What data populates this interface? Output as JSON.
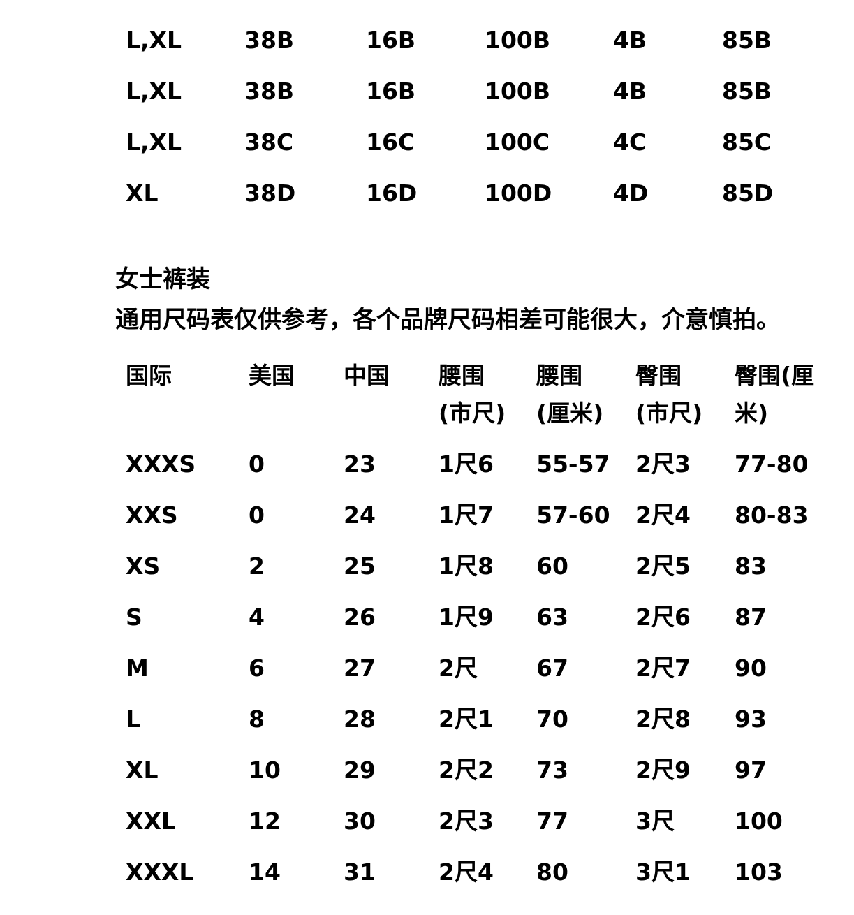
{
  "bra_table": {
    "rows": [
      [
        "L,XL",
        "38B",
        "16B",
        "100B",
        "4B",
        "85B"
      ],
      [
        "L,XL",
        "38B",
        "16B",
        "100B",
        "4B",
        "85B"
      ],
      [
        "L,XL",
        "38C",
        "16C",
        "100C",
        "4C",
        "85C"
      ],
      [
        "XL",
        "38D",
        "16D",
        "100D",
        "4D",
        "85D"
      ]
    ]
  },
  "pants_section": {
    "heading": "女士裤装",
    "note": "通用尺码表仅供参考，各个品牌尺码相差可能很大，介意慎拍。",
    "headers": [
      [
        "国际"
      ],
      [
        "美国"
      ],
      [
        "中国"
      ],
      [
        "腰围",
        "(市尺)"
      ],
      [
        "腰围",
        "(厘米)"
      ],
      [
        "臀围",
        "(市尺)"
      ],
      [
        "臀围(厘",
        "米)"
      ]
    ],
    "rows": [
      [
        "XXXS",
        "0",
        "23",
        "1尺6",
        "55-57",
        "2尺3",
        "77-80"
      ],
      [
        "XXS",
        "0",
        "24",
        "1尺7",
        "57-60",
        "2尺4",
        "80-83"
      ],
      [
        "XS",
        "2",
        "25",
        "1尺8",
        "60",
        "2尺5",
        "83"
      ],
      [
        "S",
        "4",
        "26",
        "1尺9",
        "63",
        "2尺6",
        "87"
      ],
      [
        "M",
        "6",
        "27",
        "2尺",
        "67",
        "2尺7",
        "90"
      ],
      [
        "L",
        "8",
        "28",
        "2尺1",
        "70",
        "2尺8",
        "93"
      ],
      [
        "XL",
        "10",
        "29",
        "2尺2",
        "73",
        "2尺9",
        "97"
      ],
      [
        "XXL",
        "12",
        "30",
        "2尺3",
        "77",
        "3尺",
        "100"
      ],
      [
        "XXXL",
        "14",
        "31",
        "2尺4",
        "80",
        "3尺1",
        "103"
      ]
    ]
  }
}
